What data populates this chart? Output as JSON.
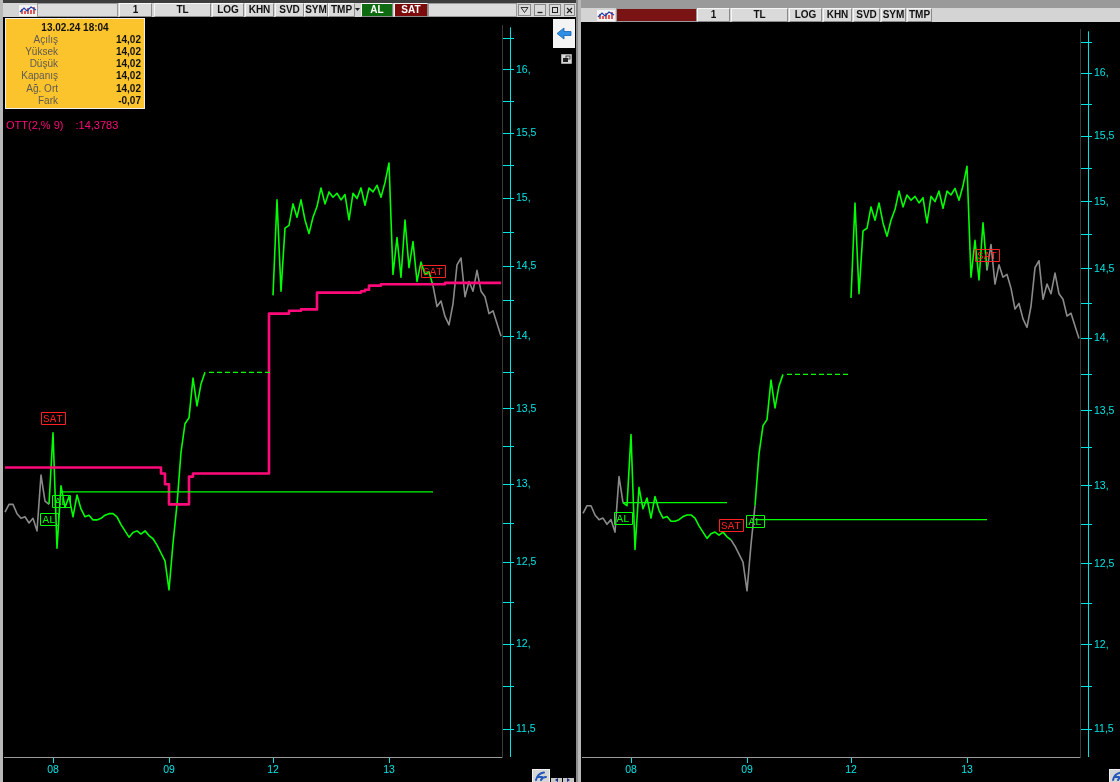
{
  "chart_data": [
    {
      "type": "line",
      "log": true,
      "legend": "top left",
      "categories": [
        null,
        null,
        null,
        null,
        null,
        null,
        null,
        null,
        null,
        null,
        null,
        null,
        "08",
        null,
        null,
        null,
        null,
        null,
        null,
        null,
        null,
        null,
        null,
        null,
        null,
        null,
        null,
        null,
        null,
        null,
        null,
        null,
        null,
        null,
        null,
        null,
        null,
        null,
        null,
        null,
        null,
        "09",
        null,
        null,
        null,
        null,
        null,
        null,
        null,
        null,
        null,
        null,
        null,
        null,
        null,
        null,
        null,
        null,
        null,
        null,
        null,
        null,
        null,
        null,
        null,
        null,
        null,
        "12",
        null,
        null,
        null,
        null,
        null,
        null,
        null,
        null,
        null,
        null,
        null,
        null,
        null,
        null,
        null,
        null,
        null,
        null,
        null,
        null,
        null,
        null,
        null,
        null,
        null,
        null,
        null,
        null,
        "13",
        null,
        null,
        null,
        null,
        null,
        null,
        null,
        null,
        null,
        null,
        null,
        null,
        null,
        null,
        null,
        null,
        null,
        null,
        null,
        null,
        null,
        null,
        null,
        null,
        null,
        null,
        null,
        null
      ],
      "series": [
        {
          "color": "#00ff00",
          "values": [
            null,
            null,
            null,
            null,
            null,
            null,
            null,
            null,
            null,
            null,
            null,
            12.87,
            13.34,
            12.59,
            12.99,
            12.85,
            12.92,
            12.79,
            12.93,
            12.84,
            12.79,
            12.8,
            12.77,
            12.77,
            12.78,
            12.8,
            12.81,
            12.81,
            12.79,
            12.74,
            12.7,
            12.66,
            12.69,
            12.7,
            12.68,
            12.7,
            12.67,
            12.65,
            12.61,
            12.56,
            12.51,
            12.33,
            12.62,
            12.87,
            13.21,
            13.4,
            13.44,
            13.71,
            13.52,
            13.67,
            13.75,
            null,
            null,
            null,
            null,
            null,
            null,
            null,
            null,
            null,
            null,
            null,
            null,
            null,
            null,
            null,
            null,
            14.29,
            14.99,
            14.32,
            14.78,
            14.8,
            14.96,
            14.86,
            14.99,
            14.84,
            14.74,
            14.86,
            14.94,
            15.08,
            14.96,
            15.05,
            15.01,
            15.04,
            14.99,
            15.03,
            14.84,
            15.04,
            15.0,
            15.08,
            14.95,
            15.08,
            15.05,
            15.1,
            15.01,
            15.12,
            15.27,
            14.44,
            14.71,
            14.42,
            14.84,
            14.49,
            14.68,
            14.39,
            14.53,
            14.44,
            14.46,
            14.36,
            null,
            null,
            null,
            null,
            null,
            null,
            null,
            null,
            null,
            null,
            null,
            null,
            null,
            null,
            null,
            null,
            null
          ],
          "value_labels": [
            null,
            null,
            null,
            null,
            null,
            null,
            null,
            null,
            null,
            null,
            null,
            "AL",
            "SAT",
            null,
            "AL",
            null,
            null,
            null,
            null,
            null,
            null,
            null,
            null,
            null,
            null,
            null,
            null,
            null,
            null,
            null,
            null,
            null,
            null,
            null,
            null,
            null,
            null,
            null,
            null,
            null,
            null,
            null,
            null,
            null,
            null,
            null,
            null,
            null,
            null,
            null,
            null,
            null,
            null,
            null,
            null,
            null,
            null,
            null,
            null,
            null,
            null,
            null,
            null,
            null,
            null,
            null,
            null,
            null,
            null,
            null,
            null,
            null,
            null,
            null,
            null,
            null,
            null,
            null,
            null,
            null,
            null,
            null,
            null,
            null,
            null,
            null,
            null,
            null,
            null,
            null,
            null,
            null,
            null,
            null,
            null,
            null,
            null,
            null,
            null,
            null,
            null,
            null,
            null,
            null,
            null,
            null,
            null,
            "SAT",
            null,
            null,
            null,
            null,
            null,
            null,
            null,
            null,
            null,
            null,
            null,
            null,
            null,
            null,
            null,
            null,
            null
          ]
        },
        {
          "color": "#8a8a8a",
          "values": [
            12.82,
            12.87,
            12.87,
            12.81,
            12.78,
            12.79,
            12.75,
            12.78,
            12.7,
            13.06,
            12.89,
            12.87,
            null,
            null,
            null,
            null,
            null,
            null,
            null,
            null,
            null,
            null,
            null,
            null,
            null,
            null,
            null,
            null,
            null,
            null,
            null,
            null,
            null,
            null,
            null,
            null,
            null,
            null,
            null,
            null,
            null,
            null,
            null,
            null,
            null,
            null,
            null,
            null,
            null,
            null,
            null,
            null,
            null,
            null,
            null,
            null,
            null,
            null,
            null,
            null,
            null,
            null,
            null,
            null,
            null,
            null,
            null,
            null,
            null,
            null,
            null,
            null,
            null,
            null,
            null,
            null,
            null,
            null,
            null,
            null,
            null,
            null,
            null,
            null,
            null,
            null,
            null,
            null,
            null,
            null,
            null,
            null,
            null,
            null,
            null,
            null,
            null,
            null,
            null,
            null,
            null,
            null,
            null,
            null,
            null,
            null,
            null,
            14.36,
            14.21,
            14.25,
            14.14,
            14.08,
            14.23,
            14.51,
            14.56,
            14.28,
            14.39,
            14.32,
            14.47,
            14.32,
            14.28,
            14.16,
            14.18,
            14.09,
            14.0
          ]
        },
        {
          "type": "step",
          "name": "OTT(2,% 9)",
          "color": "#ff0a7a",
          "values": [
            13.11,
            13.11,
            13.11,
            13.11,
            13.11,
            13.11,
            13.11,
            13.11,
            13.11,
            13.11,
            13.11,
            13.11,
            13.11,
            13.11,
            13.11,
            13.11,
            13.11,
            13.11,
            13.11,
            13.11,
            13.11,
            13.11,
            13.11,
            13.11,
            13.11,
            13.11,
            13.11,
            13.11,
            13.11,
            13.11,
            13.11,
            13.11,
            13.11,
            13.11,
            13.11,
            13.11,
            13.11,
            13.11,
            13.11,
            13.11,
            13.07,
            13.0,
            12.87,
            12.87,
            12.87,
            12.87,
            12.87,
            13.05,
            13.07,
            13.07,
            13.07,
            13.07,
            13.07,
            13.07,
            13.07,
            13.07,
            13.07,
            13.07,
            13.07,
            13.07,
            13.07,
            13.07,
            13.07,
            13.07,
            13.07,
            13.07,
            13.07,
            14.16,
            14.16,
            14.16,
            14.16,
            14.16,
            14.18,
            14.18,
            14.18,
            14.19,
            14.19,
            14.19,
            14.19,
            14.31,
            14.31,
            14.31,
            14.31,
            14.31,
            14.31,
            14.31,
            14.31,
            14.31,
            14.31,
            14.31,
            14.32,
            14.33,
            14.36,
            14.36,
            14.36,
            14.37,
            14.37,
            14.37,
            14.37,
            14.37,
            14.37,
            14.37,
            14.37,
            14.37,
            14.37,
            14.37,
            14.37,
            14.37,
            14.37,
            14.37,
            14.37,
            14.38,
            14.38,
            14.38,
            14.38,
            14.38,
            14.38,
            14.38,
            14.38,
            14.38,
            14.38,
            14.38,
            14.38,
            14.38,
            14.38
          ]
        },
        {
          "color": "#00ff00",
          "values": [
            null,
            null,
            null,
            null,
            null,
            null,
            null,
            null,
            null,
            null,
            null,
            null,
            null,
            null,
            12.95,
            12.95,
            12.95,
            12.95,
            12.95,
            12.95,
            12.95,
            12.95,
            12.95,
            12.95,
            12.95,
            12.95,
            12.95,
            12.95,
            12.95,
            12.95,
            12.95,
            12.95,
            12.95,
            12.95,
            12.95,
            12.95,
            12.95,
            12.95,
            12.95,
            12.95,
            12.95,
            12.95,
            12.95,
            12.95,
            12.95,
            12.95,
            12.95,
            12.95,
            12.95,
            12.95,
            12.95,
            12.95,
            12.95,
            12.95,
            12.95,
            12.95,
            12.95,
            12.95,
            12.95,
            12.95,
            12.95,
            12.95,
            12.95,
            12.95,
            12.95,
            12.95,
            12.95,
            12.95,
            12.95,
            12.95,
            12.95,
            12.95,
            12.95,
            12.95,
            12.95,
            12.95,
            12.95,
            12.95,
            12.95,
            12.95,
            12.95,
            12.95,
            12.95,
            12.95,
            12.95,
            12.95,
            12.95,
            12.95,
            12.95,
            12.95,
            12.95,
            12.95,
            12.95,
            12.95,
            12.95,
            12.95,
            12.95,
            12.95,
            12.95,
            12.95,
            12.95,
            12.95,
            12.95,
            12.95,
            12.95,
            12.95,
            12.95,
            12.95,
            null,
            null,
            null,
            null,
            null,
            null,
            null,
            null,
            null,
            null,
            null,
            null,
            null,
            null,
            null,
            null,
            null
          ]
        },
        {
          "color": "#00ff00",
          "line_style": "dashed",
          "values": [
            null,
            null,
            null,
            null,
            null,
            null,
            null,
            null,
            null,
            null,
            null,
            null,
            null,
            null,
            null,
            null,
            null,
            null,
            null,
            null,
            null,
            null,
            null,
            null,
            null,
            null,
            null,
            null,
            null,
            null,
            null,
            null,
            null,
            null,
            null,
            null,
            null,
            null,
            null,
            null,
            null,
            null,
            null,
            null,
            null,
            null,
            null,
            null,
            null,
            null,
            null,
            13.75,
            13.75,
            13.75,
            13.75,
            13.75,
            13.75,
            13.75,
            13.75,
            13.75,
            13.75,
            13.75,
            13.75,
            13.75,
            13.75,
            13.75,
            13.75,
            13.75,
            null,
            null,
            null,
            null,
            null,
            null,
            null,
            null,
            null,
            null,
            null,
            null,
            null,
            null,
            null,
            null,
            null,
            null,
            null,
            null,
            null,
            null,
            null,
            null,
            null,
            null,
            null,
            null,
            null,
            null,
            null,
            null,
            null,
            null,
            null,
            null,
            null,
            null,
            null,
            null,
            null,
            null,
            null,
            null,
            null,
            null,
            null,
            null,
            null,
            null,
            null,
            null,
            null,
            null,
            null,
            null,
            null
          ]
        }
      ],
      "ylim": [
        11.34,
        16.36
      ],
      "yticks": [
        {
          "value": 11.5,
          "label": "11,5"
        },
        {
          "value": 11.75,
          "label": null
        },
        {
          "value": 12,
          "label": "12,"
        },
        {
          "value": 12.25,
          "label": null
        },
        {
          "value": 12.5,
          "label": "12,5"
        },
        {
          "value": 12.75,
          "label": null
        },
        {
          "value": 13,
          "label": "13,"
        },
        {
          "value": 13.25,
          "label": null
        },
        {
          "value": 13.5,
          "label": "13,5"
        },
        {
          "value": 13.75,
          "label": null
        },
        {
          "value": 14,
          "label": "14,"
        },
        {
          "value": 14.25,
          "label": null
        },
        {
          "value": 14.5,
          "label": "14,5"
        },
        {
          "value": 14.75,
          "label": null
        },
        {
          "value": 15,
          "label": "15,"
        },
        {
          "value": 15.25,
          "label": null
        },
        {
          "value": 15.5,
          "label": "15,5"
        },
        {
          "value": 15.75,
          "label": null
        },
        {
          "value": 16,
          "label": "16,"
        },
        {
          "value": 16.25,
          "label": null
        }
      ],
      "annotations": [
        "1",
        "TL",
        "LOG",
        "KHN",
        "SVD",
        "SYM",
        "TMP",
        "AL",
        "SAT",
        "13.02.24 18:04",
        "Açılış",
        "14,02",
        "Yüksek",
        "14,02",
        "Düşük",
        "14,02",
        "Kapanış",
        "14,02",
        "Ağ. Ort",
        "14,02",
        "Fark",
        "-0,07",
        ":14,3783"
      ]
    },
    {
      "type": "line",
      "log": true,
      "categories": [
        null,
        null,
        null,
        null,
        null,
        null,
        null,
        null,
        null,
        null,
        null,
        null,
        "08",
        null,
        null,
        null,
        null,
        null,
        null,
        null,
        null,
        null,
        null,
        null,
        null,
        null,
        null,
        null,
        null,
        null,
        null,
        null,
        null,
        null,
        null,
        null,
        null,
        null,
        null,
        null,
        null,
        "09",
        null,
        null,
        null,
        null,
        null,
        null,
        null,
        null,
        null,
        null,
        null,
        null,
        null,
        null,
        null,
        null,
        null,
        null,
        null,
        null,
        null,
        null,
        null,
        null,
        null,
        "12",
        null,
        null,
        null,
        null,
        null,
        null,
        null,
        null,
        null,
        null,
        null,
        null,
        null,
        null,
        null,
        null,
        null,
        null,
        null,
        null,
        null,
        null,
        null,
        null,
        null,
        null,
        null,
        null,
        "13",
        null,
        null,
        null,
        null,
        null,
        null,
        null,
        null,
        null,
        null,
        null,
        null,
        null,
        null,
        null,
        null,
        null,
        null,
        null,
        null,
        null,
        null,
        null,
        null,
        null,
        null,
        null,
        null
      ],
      "series": [
        {
          "color": "#00ff00",
          "values": [
            null,
            null,
            null,
            null,
            null,
            null,
            null,
            null,
            null,
            null,
            12.89,
            12.87,
            13.34,
            12.59,
            12.99,
            12.85,
            12.92,
            12.79,
            12.93,
            12.84,
            12.79,
            12.8,
            12.77,
            12.77,
            12.78,
            12.8,
            12.81,
            12.81,
            12.79,
            12.74,
            12.7,
            12.66,
            12.69,
            12.7,
            12.68,
            12.7,
            12.67,
            12.65,
            null,
            null,
            null,
            null,
            null,
            12.87,
            13.21,
            13.4,
            13.44,
            13.71,
            13.52,
            13.67,
            13.75,
            null,
            null,
            null,
            null,
            null,
            null,
            null,
            null,
            null,
            null,
            null,
            null,
            null,
            null,
            null,
            null,
            14.29,
            14.99,
            14.32,
            14.78,
            14.8,
            14.96,
            14.86,
            14.99,
            14.84,
            14.74,
            14.86,
            14.94,
            15.08,
            14.96,
            15.05,
            15.01,
            15.04,
            14.99,
            15.03,
            14.84,
            15.04,
            15.0,
            15.08,
            14.95,
            15.08,
            15.05,
            15.1,
            15.01,
            15.12,
            15.27,
            14.44,
            14.71,
            14.42,
            14.84,
            14.49,
            null,
            null,
            null,
            null,
            null,
            null,
            null,
            null,
            null,
            null,
            null,
            null,
            null,
            null,
            null,
            null,
            null,
            null,
            null,
            null,
            null,
            null,
            null
          ],
          "value_labels": [
            null,
            null,
            null,
            null,
            null,
            null,
            null,
            null,
            null,
            null,
            "AL",
            null,
            null,
            null,
            null,
            null,
            null,
            null,
            null,
            null,
            null,
            null,
            null,
            null,
            null,
            null,
            null,
            null,
            null,
            null,
            null,
            null,
            null,
            null,
            null,
            null,
            null,
            "SAT",
            null,
            null,
            null,
            null,
            null,
            "AL",
            null,
            null,
            null,
            null,
            null,
            null,
            null,
            null,
            null,
            null,
            null,
            null,
            null,
            null,
            null,
            null,
            null,
            null,
            null,
            null,
            null,
            null,
            null,
            null,
            null,
            null,
            null,
            null,
            null,
            null,
            null,
            null,
            null,
            null,
            null,
            null,
            null,
            null,
            null,
            null,
            null,
            null,
            null,
            null,
            null,
            null,
            null,
            null,
            null,
            null,
            null,
            null,
            null,
            null,
            null,
            null,
            null,
            "SAT",
            null,
            null,
            null,
            null,
            null,
            null,
            null,
            null,
            null,
            null,
            null,
            null,
            null,
            null,
            null,
            null,
            null,
            null,
            null,
            null,
            null,
            null,
            null
          ]
        },
        {
          "color": "#8a8a8a",
          "values": [
            12.82,
            12.87,
            12.87,
            12.81,
            12.78,
            12.79,
            12.75,
            12.78,
            12.7,
            13.06,
            12.89,
            null,
            null,
            null,
            null,
            null,
            null,
            null,
            null,
            null,
            null,
            null,
            null,
            null,
            null,
            null,
            null,
            null,
            null,
            null,
            null,
            null,
            null,
            null,
            null,
            null,
            null,
            12.65,
            12.61,
            12.56,
            12.51,
            12.33,
            12.62,
            12.87,
            null,
            null,
            null,
            null,
            null,
            null,
            null,
            null,
            null,
            null,
            null,
            null,
            null,
            null,
            null,
            null,
            null,
            null,
            null,
            null,
            null,
            null,
            null,
            null,
            null,
            null,
            null,
            null,
            null,
            null,
            null,
            null,
            null,
            null,
            null,
            null,
            null,
            null,
            null,
            null,
            null,
            null,
            null,
            null,
            null,
            null,
            null,
            null,
            null,
            null,
            null,
            null,
            null,
            null,
            null,
            null,
            null,
            14.49,
            14.68,
            14.39,
            14.53,
            14.44,
            14.46,
            14.36,
            14.21,
            14.25,
            14.14,
            14.08,
            14.23,
            14.51,
            14.56,
            14.28,
            14.39,
            14.32,
            14.47,
            14.32,
            14.28,
            14.16,
            14.18,
            14.09,
            14.0
          ]
        },
        {
          "color": "#00ff00",
          "values": [
            null,
            null,
            null,
            null,
            null,
            null,
            null,
            null,
            null,
            null,
            12.89,
            12.89,
            12.89,
            12.89,
            12.89,
            12.89,
            12.89,
            12.89,
            12.89,
            12.89,
            12.89,
            12.89,
            12.89,
            12.89,
            12.89,
            12.89,
            12.89,
            12.89,
            12.89,
            12.89,
            12.89,
            12.89,
            12.89,
            12.89,
            12.89,
            12.89,
            12.89,
            null,
            null,
            null,
            null,
            null,
            null,
            null,
            null,
            null,
            null,
            null,
            null,
            null,
            null,
            null,
            null,
            null,
            null,
            null,
            null,
            null,
            null,
            null,
            null,
            null,
            null,
            null,
            null,
            null,
            null,
            null,
            null,
            null,
            null,
            null,
            null,
            null,
            null,
            null,
            null,
            null,
            null,
            null,
            null,
            null,
            null,
            null,
            null,
            null,
            null,
            null,
            null,
            null,
            null,
            null,
            null,
            null,
            null,
            null,
            null,
            null,
            null,
            null,
            null,
            null,
            null,
            null,
            null,
            null,
            null,
            null,
            null,
            null,
            null,
            null,
            null,
            null,
            null,
            null,
            null,
            null,
            null,
            null,
            null,
            null,
            null,
            null,
            null
          ]
        },
        {
          "color": "#00ff00",
          "values": [
            null,
            null,
            null,
            null,
            null,
            null,
            null,
            null,
            null,
            null,
            null,
            null,
            null,
            null,
            null,
            null,
            null,
            null,
            null,
            null,
            null,
            null,
            null,
            null,
            null,
            null,
            null,
            null,
            null,
            null,
            null,
            null,
            null,
            null,
            null,
            null,
            null,
            null,
            null,
            null,
            null,
            null,
            null,
            12.78,
            12.78,
            12.78,
            12.78,
            12.78,
            12.78,
            12.78,
            12.78,
            12.78,
            12.78,
            12.78,
            12.78,
            12.78,
            12.78,
            12.78,
            12.78,
            12.78,
            12.78,
            12.78,
            12.78,
            12.78,
            12.78,
            12.78,
            12.78,
            12.78,
            12.78,
            12.78,
            12.78,
            12.78,
            12.78,
            12.78,
            12.78,
            12.78,
            12.78,
            12.78,
            12.78,
            12.78,
            12.78,
            12.78,
            12.78,
            12.78,
            12.78,
            12.78,
            12.78,
            12.78,
            12.78,
            12.78,
            12.78,
            12.78,
            12.78,
            12.78,
            12.78,
            12.78,
            12.78,
            12.78,
            12.78,
            12.78,
            12.78,
            12.78,
            null,
            null,
            null,
            null,
            null,
            null,
            null,
            null,
            null,
            null,
            null,
            null,
            null,
            null,
            null,
            null,
            null,
            null,
            null,
            null,
            null,
            null,
            null
          ]
        },
        {
          "color": "#00ff00",
          "line_style": "dashed",
          "values": [
            null,
            null,
            null,
            null,
            null,
            null,
            null,
            null,
            null,
            null,
            null,
            null,
            null,
            null,
            null,
            null,
            null,
            null,
            null,
            null,
            null,
            null,
            null,
            null,
            null,
            null,
            null,
            null,
            null,
            null,
            null,
            null,
            null,
            null,
            null,
            null,
            null,
            null,
            null,
            null,
            null,
            null,
            null,
            null,
            null,
            null,
            null,
            null,
            null,
            null,
            null,
            13.75,
            13.75,
            13.75,
            13.75,
            13.75,
            13.75,
            13.75,
            13.75,
            13.75,
            13.75,
            13.75,
            13.75,
            13.75,
            13.75,
            13.75,
            13.75,
            13.75,
            null,
            null,
            null,
            null,
            null,
            null,
            null,
            null,
            null,
            null,
            null,
            null,
            null,
            null,
            null,
            null,
            null,
            null,
            null,
            null,
            null,
            null,
            null,
            null,
            null,
            null,
            null,
            null,
            null,
            null,
            null,
            null,
            null,
            null,
            null,
            null,
            null,
            null,
            null,
            null,
            null,
            null,
            null,
            null,
            null,
            null,
            null,
            null,
            null,
            null,
            null,
            null,
            null,
            null,
            null,
            null,
            null
          ]
        }
      ],
      "ylim": [
        11.34,
        16.36
      ],
      "yticks": [
        {
          "value": 11.5,
          "label": "11,5"
        },
        {
          "value": 11.75,
          "label": null
        },
        {
          "value": 12,
          "label": "12,"
        },
        {
          "value": 12.25,
          "label": null
        },
        {
          "value": 12.5,
          "label": "12,5"
        },
        {
          "value": 12.75,
          "label": null
        },
        {
          "value": 13,
          "label": "13,"
        },
        {
          "value": 13.25,
          "label": null
        },
        {
          "value": 13.5,
          "label": "13,5"
        },
        {
          "value": 13.75,
          "label": null
        },
        {
          "value": 14,
          "label": "14,"
        },
        {
          "value": 14.25,
          "label": null
        },
        {
          "value": 14.5,
          "label": "14,5"
        },
        {
          "value": 14.75,
          "label": null
        },
        {
          "value": 15,
          "label": "15,"
        },
        {
          "value": 15.25,
          "label": null
        },
        {
          "value": 15.5,
          "label": "15,5"
        },
        {
          "value": 15.75,
          "label": null
        },
        {
          "value": 16,
          "label": "16,"
        },
        {
          "value": 16.25,
          "label": null
        }
      ],
      "annotations": [
        "1",
        "TL",
        "LOG",
        "KHN",
        "SVD",
        "SYM",
        "TMP"
      ]
    }
  ]
}
